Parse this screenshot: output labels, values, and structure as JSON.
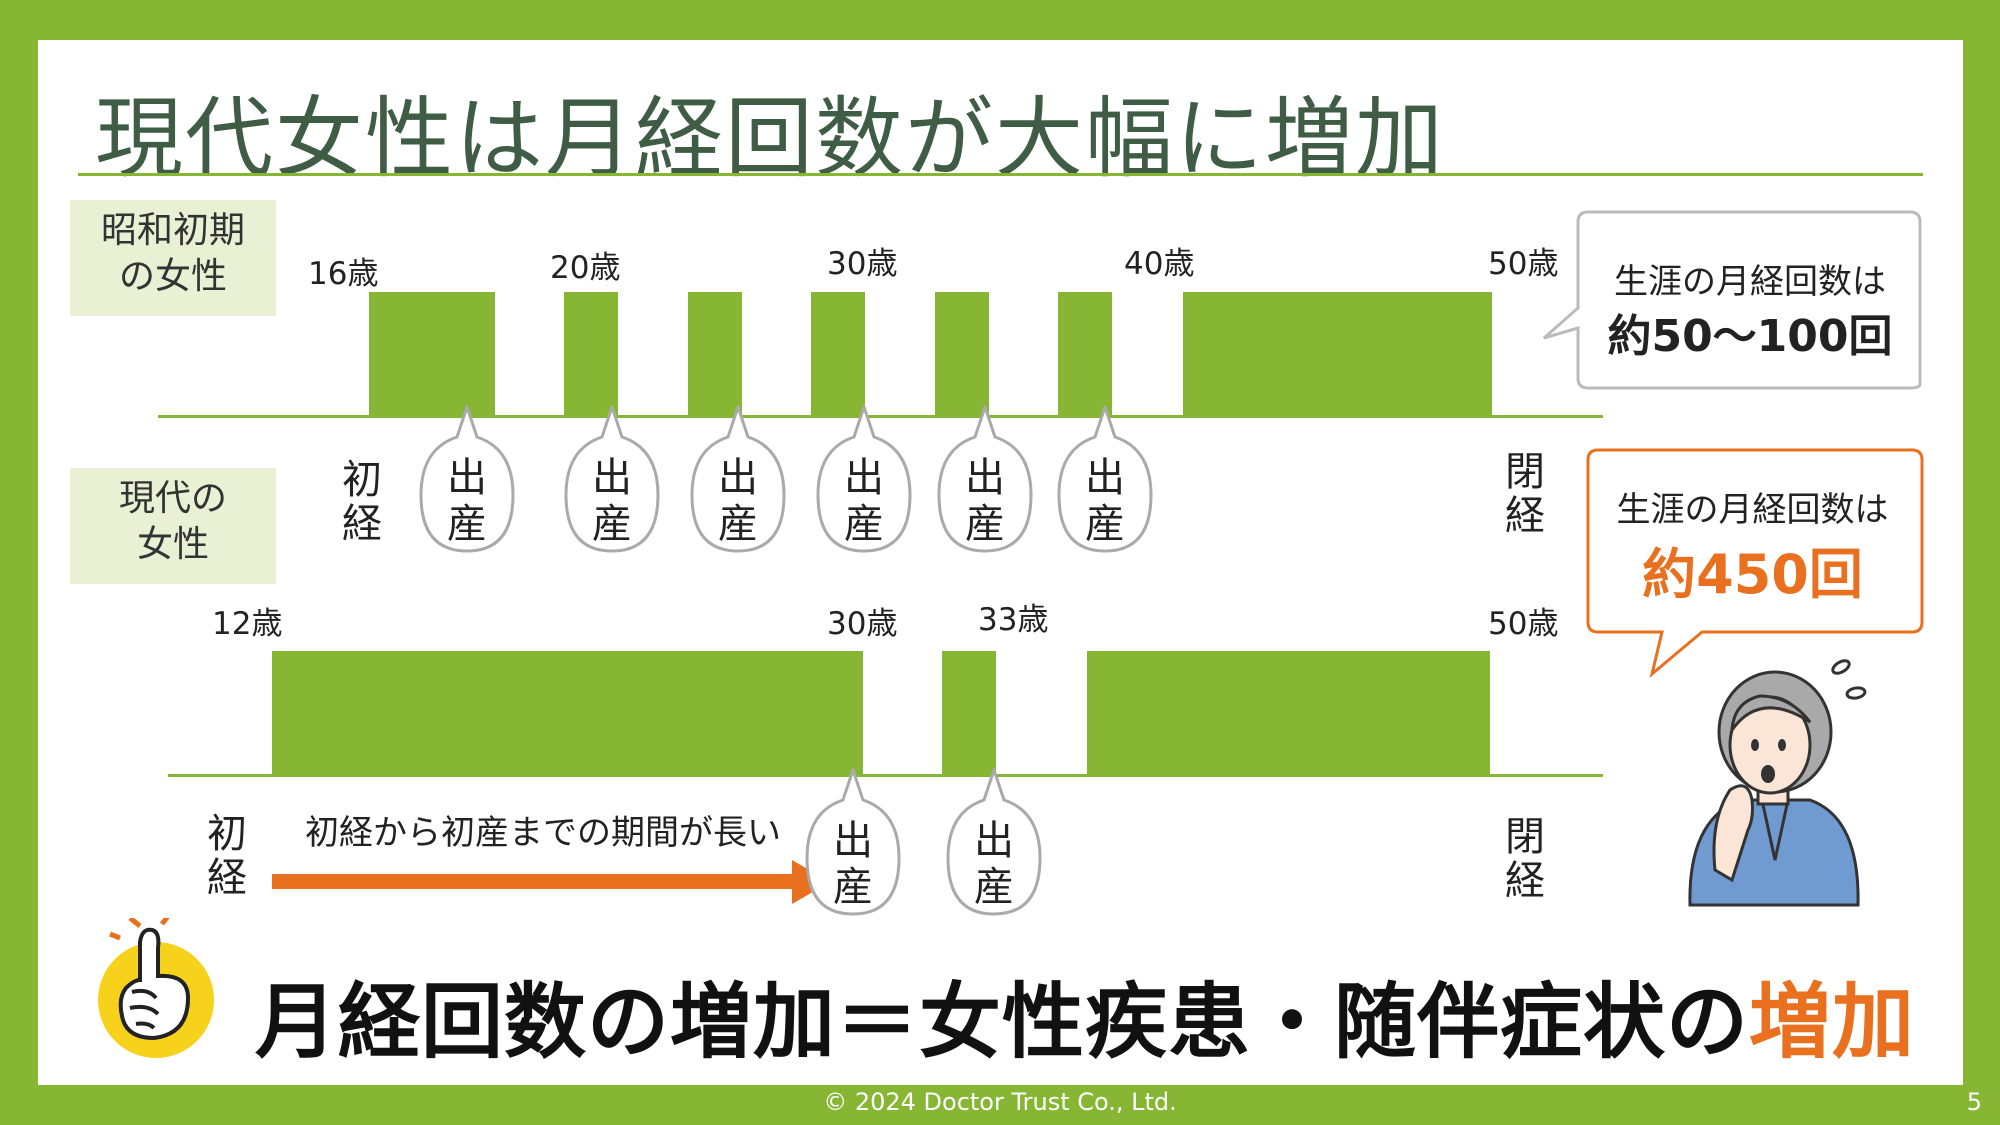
{
  "title": "現代女性は月経回数が大幅に増加",
  "showa": {
    "label_lines": [
      "昭和初期",
      "の女性"
    ],
    "ages": [
      "16歳",
      "20歳",
      "30歳",
      "40歳",
      "50歳"
    ],
    "menarche": [
      "初",
      "経"
    ],
    "menopause": [
      "閉",
      "経"
    ],
    "birth_count": 6
  },
  "modern": {
    "label_lines": [
      "現代の",
      "女性"
    ],
    "ages": [
      "12歳",
      "30歳",
      "33歳",
      "50歳"
    ],
    "menarche": [
      "初",
      "経"
    ],
    "menopause": [
      "閉",
      "経"
    ],
    "birth_count": 2,
    "gap_text": "初経から初産までの期間が長い"
  },
  "birth_label": [
    "出",
    "産"
  ],
  "callout_showa": {
    "line1": "生涯の月経回数は",
    "line2": "約50〜100回",
    "color": "#222222",
    "border": "#bbbbbb"
  },
  "callout_modern": {
    "line1": "生涯の月経回数は",
    "line2": "約450回",
    "color": "#e8701f",
    "border": "#e8701f"
  },
  "conclusion": {
    "main": "月経回数の増加＝女性疾患・随伴症状の",
    "highlight": "増加"
  },
  "footer": "© 2024 Doctor Trust Co., Ltd.",
  "page_number": "5",
  "colors": {
    "green": "#86b633",
    "orange": "#e8701f",
    "label_bg": "#e9f0d3",
    "title": "#3f5c45"
  },
  "icons": [
    "pointing-hand-icon",
    "worried-woman-illustration",
    "sweat-drops-icon"
  ]
}
